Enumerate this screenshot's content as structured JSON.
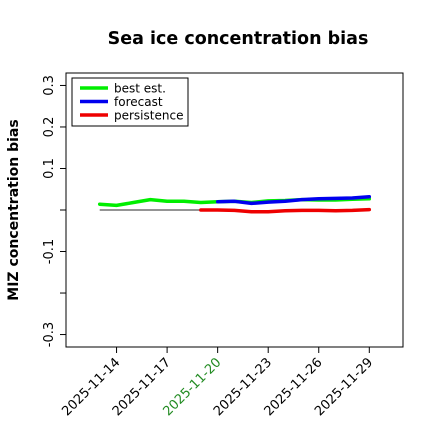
{
  "chart_data": {
    "type": "line",
    "title": "Sea ice concentration bias",
    "ylabel": "MIZ concentration bias",
    "xlabel": "",
    "ylim": [
      -0.33,
      0.33
    ],
    "xlim": [
      "2025-11-11",
      "2025-12-01"
    ],
    "y_ticks": [
      {
        "value": 0.3,
        "label": "0.3"
      },
      {
        "value": 0.2,
        "label": "0.2"
      },
      {
        "value": 0.1,
        "label": "0.1"
      },
      {
        "value": 0.0,
        "label": ""
      },
      {
        "value": -0.1,
        "label": "-0.1"
      },
      {
        "value": -0.2,
        "label": ""
      },
      {
        "value": -0.3,
        "label": "-0.3"
      }
    ],
    "x_ticks": [
      {
        "value": "2025-11-14",
        "label": "2025-11-14"
      },
      {
        "value": "2025-11-17",
        "label": "2025-11-17"
      },
      {
        "value": "2025-11-20",
        "label": "2025-11-20"
      },
      {
        "value": "2025-11-23",
        "label": "2025-11-23"
      },
      {
        "value": "2025-11-26",
        "label": "2025-11-26"
      },
      {
        "value": "2025-11-29",
        "label": "2025-11-29"
      }
    ],
    "highlight_tick": "2025-11-20",
    "highlight_color": "#228B22",
    "zero_line": {
      "from": "2025-11-13",
      "to": "2025-11-20",
      "y": 0.0
    },
    "legend_position": "top-left",
    "grid": false,
    "series": [
      {
        "name": "best est.",
        "color": "#00ee00",
        "x": [
          "2025-11-13",
          "2025-11-14",
          "2025-11-15",
          "2025-11-16",
          "2025-11-17",
          "2025-11-18",
          "2025-11-19",
          "2025-11-20",
          "2025-11-21",
          "2025-11-22",
          "2025-11-23",
          "2025-11-24",
          "2025-11-25",
          "2025-11-26",
          "2025-11-27",
          "2025-11-28",
          "2025-11-29"
        ],
        "y": [
          0.014,
          0.011,
          0.018,
          0.025,
          0.021,
          0.021,
          0.018,
          0.02,
          0.021,
          0.018,
          0.022,
          0.023,
          0.025,
          0.024,
          0.024,
          0.026,
          0.027
        ]
      },
      {
        "name": "forecast",
        "color": "#0000ee",
        "x": [
          "2025-11-20",
          "2025-11-21",
          "2025-11-22",
          "2025-11-23",
          "2025-11-24",
          "2025-11-25",
          "2025-11-26",
          "2025-11-27",
          "2025-11-28",
          "2025-11-29"
        ],
        "y": [
          0.02,
          0.021,
          0.016,
          0.019,
          0.021,
          0.025,
          0.027,
          0.028,
          0.029,
          0.032
        ]
      },
      {
        "name": "persistence",
        "color": "#ee0000",
        "x": [
          "2025-11-19",
          "2025-11-20",
          "2025-11-21",
          "2025-11-22",
          "2025-11-23",
          "2025-11-24",
          "2025-11-25",
          "2025-11-26",
          "2025-11-27",
          "2025-11-28",
          "2025-11-29"
        ],
        "y": [
          0.0,
          0.0,
          -0.001,
          -0.004,
          -0.004,
          -0.002,
          -0.001,
          -0.001,
          -0.002,
          -0.001,
          0.001
        ]
      }
    ]
  }
}
